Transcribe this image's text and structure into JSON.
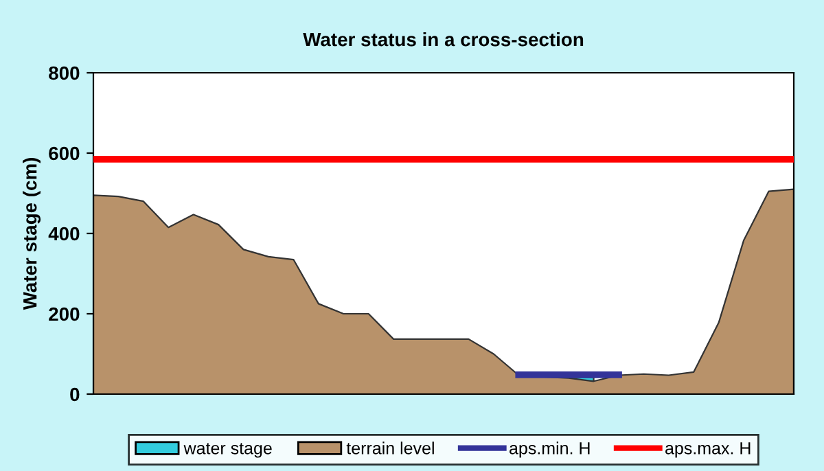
{
  "chart_data": {
    "type": "area",
    "title": "Water status in a cross-section",
    "ylabel": "Water stage (cm)",
    "categories": [
      null,
      null,
      null,
      null,
      null,
      null,
      null,
      null,
      null,
      null,
      null,
      null,
      null,
      null,
      null,
      null,
      null,
      null,
      null,
      null,
      null,
      null,
      null,
      null,
      null,
      null,
      null,
      null,
      null
    ],
    "series": [
      {
        "name": "water stage",
        "color": "#33ccdd",
        "values": [
          null,
          null,
          null,
          null,
          null,
          null,
          null,
          null,
          null,
          null,
          null,
          null,
          null,
          null,
          null,
          null,
          null,
          null,
          null,
          42,
          42,
          null,
          null,
          null,
          null,
          null,
          null,
          null,
          null
        ]
      },
      {
        "name": "terrain level",
        "color": "#b8926a",
        "values": [
          495,
          492,
          480,
          415,
          447,
          422,
          360,
          342,
          335,
          225,
          200,
          200,
          137,
          137,
          137,
          137,
          100,
          47,
          43,
          40,
          32,
          47,
          50,
          47,
          55,
          178,
          383,
          505,
          510
        ]
      },
      {
        "name": "aps.min. H",
        "type": "line",
        "color": "#333399",
        "values": [
          null,
          null,
          null,
          null,
          null,
          null,
          null,
          null,
          null,
          null,
          null,
          null,
          null,
          null,
          null,
          null,
          null,
          48,
          48,
          48,
          48,
          48,
          null,
          null,
          null,
          null,
          null,
          null,
          null
        ]
      },
      {
        "name": "aps.max. H",
        "type": "line",
        "color": "#ff0000",
        "values": [
          585,
          585,
          585,
          585,
          585,
          585,
          585,
          585,
          585,
          585,
          585,
          585,
          585,
          585,
          585,
          585,
          585,
          585,
          585,
          585,
          585,
          585,
          585,
          585,
          585,
          585,
          585,
          585,
          585
        ]
      }
    ],
    "ylim": [
      0,
      800
    ],
    "yticks": [
      0,
      200,
      400,
      600,
      800
    ],
    "grid": false,
    "legend": "bottom",
    "tick_labels": "y"
  }
}
